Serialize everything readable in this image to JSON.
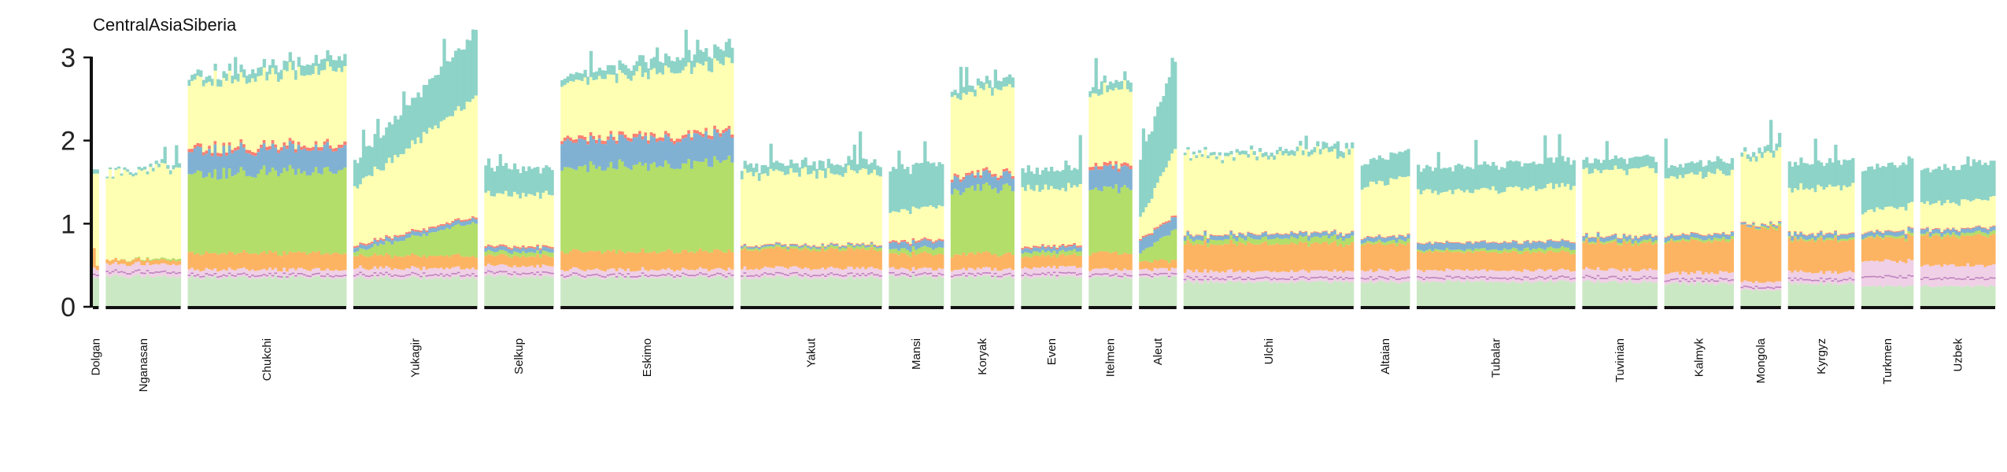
{
  "chart_data": {
    "type": "bar",
    "title": "CentralAsiaSiberia",
    "xlabel": "",
    "ylabel": "",
    "ylim": [
      0,
      3
    ],
    "yticks": [
      0,
      1,
      2,
      3
    ],
    "grid": false,
    "legend": "none",
    "component_colors": [
      "#cbe8c4",
      "#f0d0e6",
      "#fdb462",
      "#b3de69",
      "#80b1d3",
      "#fb8072",
      "#ffffb3",
      "#8dd3c7"
    ],
    "accent_colors": [
      "#bc80bd",
      "#bebada"
    ],
    "populations": [
      {
        "name": "Dolgan",
        "n": 2,
        "profile": [
          [
            0.35,
            0.12,
            0.25,
            0,
            0,
            0,
            0.95,
            0.05
          ],
          [
            0.35,
            0.1,
            0.05,
            0,
            0,
            0,
            1.15,
            0.05
          ]
        ],
        "extra": [
          0,
          0
        ]
      },
      {
        "name": "Nganasan",
        "n": 26,
        "profile": [
          0.37,
          0.15,
          0.05,
          0,
          0,
          0,
          1.03,
          0.02
        ],
        "extra": [
          0,
          0.08
        ]
      },
      {
        "name": "Chukchi",
        "n": 55,
        "profile": [
          0.35,
          0.1,
          0.2,
          0.95,
          0.28,
          0.04,
          0.8,
          0.07
        ],
        "extra": [
          0,
          0.18
        ]
      },
      {
        "name": "Yukagir",
        "n": 43,
        "profile": [
          0.35,
          0.12,
          0.15,
          0.05,
          0.05,
          0.02,
          0.7,
          0.3
        ],
        "extra": [
          0,
          1.2
        ]
      },
      {
        "name": "Selkup",
        "n": 24,
        "profile": [
          0.36,
          0.13,
          0.12,
          0.05,
          0.05,
          0.02,
          0.62,
          0.32
        ],
        "extra": [
          0,
          0
        ]
      },
      {
        "name": "Eskimo",
        "n": 60,
        "profile": [
          0.35,
          0.1,
          0.22,
          1.0,
          0.32,
          0.04,
          0.67,
          0.08
        ],
        "extra": [
          0,
          0.25
        ]
      },
      {
        "name": "Yakut",
        "n": 49,
        "profile": [
          0.35,
          0.12,
          0.22,
          0.02,
          0.02,
          0.01,
          0.85,
          0.1
        ],
        "extra": [
          0,
          0.05
        ]
      },
      {
        "name": "Mansi",
        "n": 19,
        "profile": [
          0.36,
          0.1,
          0.18,
          0.05,
          0.08,
          0.02,
          0.35,
          0.5
        ],
        "extra": [
          0,
          0.1
        ]
      },
      {
        "name": "Koryak",
        "n": 22,
        "profile": [
          0.35,
          0.1,
          0.18,
          0.75,
          0.15,
          0.03,
          0.95,
          0.06
        ],
        "extra": [
          0,
          0.15
        ]
      },
      {
        "name": "Even",
        "n": 21,
        "profile": [
          0.35,
          0.12,
          0.14,
          0.05,
          0.05,
          0.02,
          0.7,
          0.22
        ],
        "extra": [
          0,
          0
        ]
      },
      {
        "name": "Itelmen",
        "n": 15,
        "profile": [
          0.35,
          0.1,
          0.2,
          0.75,
          0.25,
          0.04,
          0.88,
          0.07
        ],
        "extra": [
          0,
          0.1
        ]
      },
      {
        "name": "Aleut",
        "n": 13,
        "profile": [
          0.35,
          0.1,
          0.1,
          0.1,
          0.15,
          0.02,
          0.25,
          0.7
        ],
        "extra": [
          0,
          0.9
        ]
      },
      {
        "name": "Ulchi",
        "n": 59,
        "profile": [
          0.3,
          0.13,
          0.33,
          0.05,
          0.05,
          0.01,
          0.92,
          0.03
        ],
        "extra": [
          0,
          0.1
        ]
      },
      {
        "name": "Altaian",
        "n": 17,
        "profile": [
          0.3,
          0.14,
          0.32,
          0.02,
          0.05,
          0.01,
          0.62,
          0.28
        ],
        "extra": [
          0,
          0.1
        ]
      },
      {
        "name": "Tubalar",
        "n": 55,
        "profile": [
          0.3,
          0.14,
          0.22,
          0.02,
          0.08,
          0.01,
          0.6,
          0.28
        ],
        "extra": [
          0,
          0.1
        ]
      },
      {
        "name": "Tuvinian",
        "n": 26,
        "profile": [
          0.3,
          0.15,
          0.32,
          0.02,
          0.05,
          0.01,
          0.77,
          0.12
        ],
        "extra": [
          0,
          0.05
        ]
      },
      {
        "name": "Kalmyk",
        "n": 24,
        "profile": [
          0.28,
          0.13,
          0.38,
          0.02,
          0.05,
          0.01,
          0.7,
          0.13
        ],
        "extra": [
          0,
          0.05
        ]
      },
      {
        "name": "Mongola",
        "n": 14,
        "profile": [
          0.2,
          0.1,
          0.65,
          0.0,
          0.02,
          0.01,
          0.8,
          0.05
        ],
        "extra": [
          0,
          0.1
        ]
      },
      {
        "name": "Kyrgyz",
        "n": 23,
        "profile": [
          0.28,
          0.14,
          0.38,
          0.02,
          0.05,
          0.01,
          0.55,
          0.3
        ],
        "extra": [
          0,
          0.02
        ]
      },
      {
        "name": "Turkmen",
        "n": 18,
        "profile": [
          0.25,
          0.3,
          0.28,
          0.01,
          0.05,
          0.01,
          0.25,
          0.5
        ],
        "extra": [
          0,
          0.08
        ]
      },
      {
        "name": "Uzbek",
        "n": 26,
        "profile": [
          0.25,
          0.25,
          0.35,
          0.02,
          0.05,
          0.01,
          0.3,
          0.4
        ],
        "extra": [
          0,
          0.08
        ]
      }
    ]
  }
}
